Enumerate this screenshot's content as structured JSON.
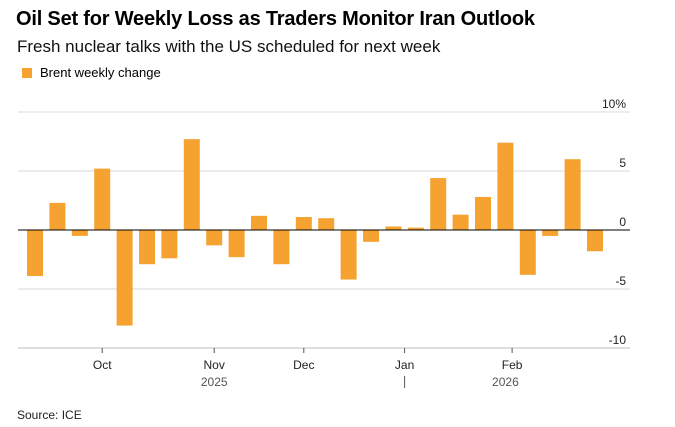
{
  "header": {
    "title": "Oil Set for Weekly Loss as Traders Monitor Iran Outlook",
    "subtitle": "Fresh nuclear talks with the US scheduled for next week"
  },
  "legend": {
    "label": "Brent weekly change",
    "color": "#F5A230"
  },
  "source": "Source: ICE",
  "chart_data": {
    "type": "bar",
    "title": "Oil Set for Weekly Loss as Traders Monitor Iran Outlook",
    "subtitle": "Fresh nuclear talks with the US scheduled for next week",
    "xlabel": "",
    "ylabel": "",
    "ylim": [
      -10,
      10
    ],
    "grid": true,
    "legend_position": "top-left",
    "series": [
      {
        "name": "Brent weekly change",
        "color": "#F5A230",
        "values": [
          -3.9,
          2.3,
          -0.5,
          5.2,
          -8.1,
          -2.9,
          -2.4,
          7.7,
          -1.3,
          -2.3,
          1.2,
          -2.9,
          1.1,
          1.0,
          -4.2,
          -1.0,
          0.3,
          0.2,
          4.4,
          1.3,
          2.8,
          7.4,
          -3.8,
          -0.5,
          6.0,
          -1.8
        ]
      }
    ],
    "y_ticks": [
      {
        "value": 10,
        "label": "10%"
      },
      {
        "value": 5,
        "label": "5"
      },
      {
        "value": 0,
        "label": "0"
      },
      {
        "value": -5,
        "label": "-5"
      },
      {
        "value": -10,
        "label": "-10"
      }
    ],
    "x_ticks": [
      {
        "bar_index": 3,
        "label": "Oct"
      },
      {
        "bar_index": 8,
        "label": "Nov"
      },
      {
        "bar_index": 12,
        "label": "Dec"
      },
      {
        "bar_index": 16.5,
        "label": "Jan"
      },
      {
        "bar_index": 21.3,
        "label": "Feb"
      }
    ],
    "year_labels": [
      {
        "bar_index": 8,
        "label": "2025"
      },
      {
        "bar_index": 21,
        "label": "2026"
      }
    ],
    "year_divider_bar_index": 16.5
  }
}
